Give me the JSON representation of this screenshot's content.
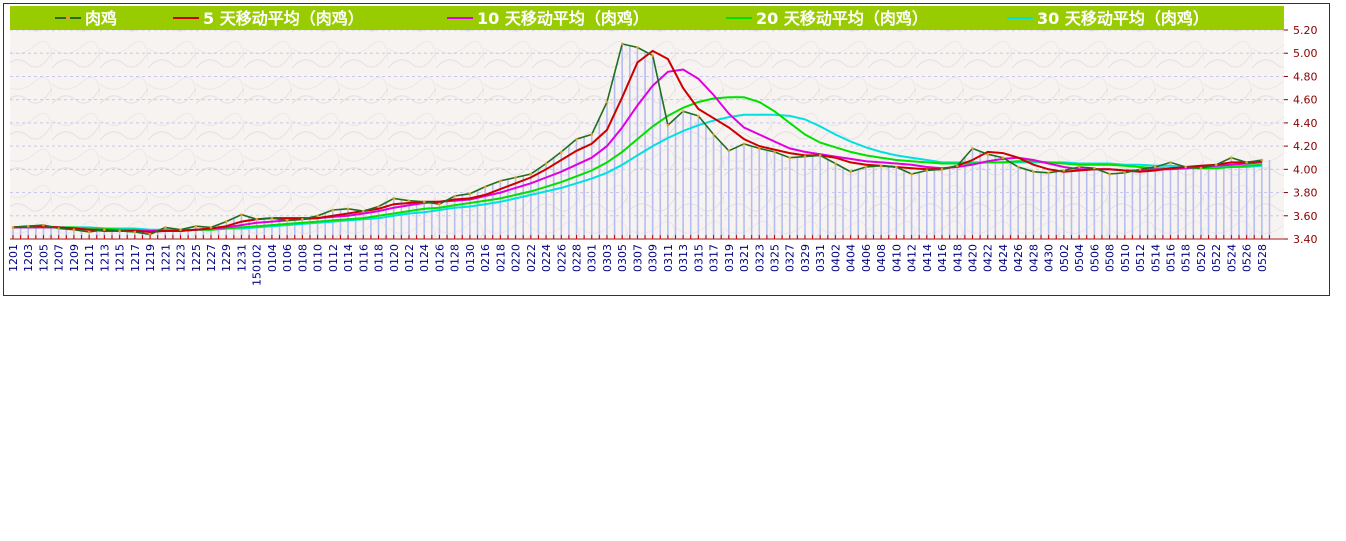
{
  "chart_data": {
    "type": "line",
    "title": "",
    "xlabel": "",
    "ylabel": "",
    "ylim": [
      3.4,
      5.2
    ],
    "y_ticks": [
      "5.20",
      "5.00",
      "4.80",
      "4.60",
      "4.40",
      "4.20",
      "4.00",
      "3.80",
      "3.60",
      "3.40"
    ],
    "grid": true,
    "legend_placement": "top",
    "legend": [
      {
        "label": "肉鸡",
        "color": "#1f6f1f"
      },
      {
        "label": "5 天移动平均（肉鸡）",
        "color": "#cc0000"
      },
      {
        "label": "10 天移动平均（肉鸡）",
        "color": "#e000e0"
      },
      {
        "label": "20 天移动平均（肉鸡）",
        "color": "#00e000"
      },
      {
        "label": "30 天移动平均（肉鸡）",
        "color": "#00e0e0"
      }
    ],
    "x_tick_labels": [
      "1201",
      "1203",
      "1205",
      "1207",
      "1209",
      "1211",
      "1213",
      "1215",
      "1217",
      "1219",
      "1221",
      "1223",
      "1225",
      "1227",
      "1229",
      "1231",
      "150102",
      "0104",
      "0106",
      "0108",
      "0110",
      "0112",
      "0114",
      "0116",
      "0118",
      "0120",
      "0122",
      "0124",
      "0126",
      "0128",
      "0130",
      "0216",
      "0218",
      "0220",
      "0222",
      "0224",
      "0226",
      "0228",
      "0301",
      "0303",
      "0305",
      "0307",
      "0309",
      "0311",
      "0313",
      "0315",
      "0317",
      "0319",
      "0321",
      "0323",
      "0325",
      "0327",
      "0329",
      "0331",
      "0402",
      "0404",
      "0406",
      "0408",
      "0410",
      "0412",
      "0414",
      "0416",
      "0418",
      "0420",
      "0422",
      "0424",
      "0426",
      "0428",
      "0430",
      "0502",
      "0504",
      "0506",
      "0508",
      "0510",
      "0512",
      "0514",
      "0516",
      "0518",
      "0520",
      "0522",
      "0524",
      "0526",
      "0528"
    ],
    "series": [
      {
        "name": "肉鸡",
        "color": "#1f6f1f",
        "values": [
          3.5,
          3.51,
          3.52,
          3.49,
          3.48,
          3.46,
          3.48,
          3.47,
          3.46,
          3.44,
          3.5,
          3.48,
          3.51,
          3.5,
          3.55,
          3.61,
          3.57,
          3.58,
          3.56,
          3.57,
          3.6,
          3.65,
          3.66,
          3.64,
          3.68,
          3.75,
          3.73,
          3.72,
          3.7,
          3.77,
          3.79,
          3.85,
          3.9,
          3.93,
          3.96,
          4.05,
          4.15,
          4.26,
          4.3,
          4.58,
          5.08,
          5.05,
          4.98,
          4.38,
          4.5,
          4.46,
          4.3,
          4.16,
          4.22,
          4.18,
          4.15,
          4.1,
          4.11,
          4.12,
          4.05,
          3.98,
          4.02,
          4.03,
          4.02,
          3.96,
          3.99,
          4.0,
          4.03,
          4.18,
          4.13,
          4.1,
          4.02,
          3.98,
          3.97,
          3.99,
          4.02,
          4.01,
          3.96,
          3.97,
          4.0,
          4.02,
          4.06,
          4.02,
          4.01,
          4.04,
          4.1,
          4.06,
          4.08
        ]
      },
      {
        "name": "5 天移动平均（肉鸡）",
        "color": "#cc0000",
        "values": [
          3.5,
          3.51,
          3.51,
          3.5,
          3.49,
          3.48,
          3.47,
          3.47,
          3.47,
          3.46,
          3.47,
          3.47,
          3.48,
          3.49,
          3.51,
          3.55,
          3.57,
          3.58,
          3.58,
          3.58,
          3.58,
          3.6,
          3.62,
          3.64,
          3.66,
          3.7,
          3.71,
          3.72,
          3.72,
          3.74,
          3.75,
          3.78,
          3.83,
          3.88,
          3.93,
          4.0,
          4.08,
          4.16,
          4.22,
          4.34,
          4.62,
          4.92,
          5.02,
          4.95,
          4.7,
          4.52,
          4.44,
          4.36,
          4.26,
          4.2,
          4.17,
          4.14,
          4.12,
          4.12,
          4.1,
          4.06,
          4.04,
          4.03,
          4.02,
          4.01,
          4.0,
          4.0,
          4.03,
          4.08,
          4.15,
          4.14,
          4.1,
          4.04,
          4.0,
          3.98,
          3.99,
          4.0,
          4.0,
          3.99,
          3.98,
          3.99,
          4.01,
          4.02,
          4.03,
          4.04,
          4.06,
          4.06,
          4.07
        ]
      },
      {
        "name": "10 天移动平均（肉鸡）",
        "color": "#e000e0",
        "values": [
          3.5,
          3.5,
          3.5,
          3.5,
          3.49,
          3.48,
          3.48,
          3.47,
          3.47,
          3.47,
          3.47,
          3.47,
          3.48,
          3.49,
          3.5,
          3.52,
          3.54,
          3.55,
          3.56,
          3.57,
          3.58,
          3.59,
          3.6,
          3.62,
          3.64,
          3.67,
          3.69,
          3.71,
          3.72,
          3.73,
          3.74,
          3.77,
          3.8,
          3.84,
          3.88,
          3.93,
          3.98,
          4.04,
          4.1,
          4.2,
          4.36,
          4.55,
          4.72,
          4.84,
          4.86,
          4.78,
          4.64,
          4.48,
          4.36,
          4.3,
          4.24,
          4.18,
          4.15,
          4.13,
          4.11,
          4.09,
          4.07,
          4.06,
          4.05,
          4.04,
          4.02,
          4.01,
          4.02,
          4.04,
          4.07,
          4.09,
          4.1,
          4.08,
          4.05,
          4.02,
          4.0,
          4.0,
          4.0,
          3.99,
          3.99,
          4.0,
          4.0,
          4.01,
          4.02,
          4.03,
          4.04,
          4.05,
          4.06
        ]
      },
      {
        "name": "20 天移动平均（肉鸡）",
        "color": "#00e000",
        "values": [
          3.5,
          3.5,
          3.5,
          3.5,
          3.5,
          3.49,
          3.49,
          3.48,
          3.48,
          3.47,
          3.47,
          3.47,
          3.48,
          3.48,
          3.49,
          3.5,
          3.51,
          3.52,
          3.53,
          3.54,
          3.55,
          3.56,
          3.57,
          3.58,
          3.6,
          3.62,
          3.64,
          3.66,
          3.67,
          3.69,
          3.71,
          3.73,
          3.75,
          3.78,
          3.81,
          3.85,
          3.89,
          3.94,
          3.99,
          4.06,
          4.15,
          4.26,
          4.37,
          4.46,
          4.53,
          4.58,
          4.61,
          4.62,
          4.62,
          4.58,
          4.5,
          4.4,
          4.3,
          4.23,
          4.19,
          4.15,
          4.12,
          4.1,
          4.08,
          4.07,
          4.06,
          4.05,
          4.05,
          4.05,
          4.06,
          4.06,
          4.07,
          4.07,
          4.06,
          4.05,
          4.04,
          4.04,
          4.04,
          4.03,
          4.02,
          4.01,
          4.01,
          4.01,
          4.01,
          4.01,
          4.02,
          4.03,
          4.04
        ]
      },
      {
        "name": "30 天移动平均（肉鸡）",
        "color": "#00e0e0",
        "values": [
          3.5,
          3.5,
          3.5,
          3.5,
          3.5,
          3.5,
          3.49,
          3.49,
          3.49,
          3.48,
          3.48,
          3.48,
          3.48,
          3.48,
          3.49,
          3.49,
          3.5,
          3.51,
          3.52,
          3.53,
          3.54,
          3.55,
          3.56,
          3.57,
          3.58,
          3.6,
          3.62,
          3.63,
          3.65,
          3.67,
          3.68,
          3.7,
          3.72,
          3.75,
          3.78,
          3.81,
          3.84,
          3.88,
          3.92,
          3.97,
          4.04,
          4.12,
          4.2,
          4.27,
          4.33,
          4.38,
          4.42,
          4.45,
          4.47,
          4.47,
          4.47,
          4.46,
          4.43,
          4.37,
          4.3,
          4.24,
          4.19,
          4.15,
          4.12,
          4.1,
          4.08,
          4.06,
          4.06,
          4.06,
          4.06,
          4.06,
          4.06,
          4.06,
          4.06,
          4.06,
          4.05,
          4.05,
          4.05,
          4.04,
          4.04,
          4.03,
          4.03,
          4.02,
          4.02,
          4.02,
          4.02,
          4.02,
          4.03
        ]
      }
    ]
  }
}
